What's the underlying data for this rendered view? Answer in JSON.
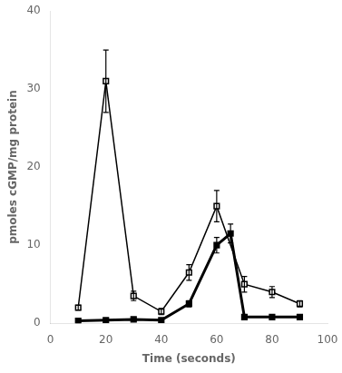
{
  "chart_data": {
    "type": "line",
    "xlabel": "Time (seconds)",
    "ylabel": "pmoles cGMP/mg protein",
    "series": [
      {
        "color": "#000000",
        "marker": "open_square",
        "x": [
          10,
          20,
          30,
          40,
          50,
          60,
          70,
          80,
          90
        ],
        "values": [
          2.0,
          31.0,
          3.5,
          1.5,
          6.5,
          15.0,
          5.0,
          4.0,
          2.5
        ],
        "yerr": [
          0.3,
          4.0,
          0.6,
          0.4,
          1.0,
          2.0,
          1.0,
          0.7,
          0.4
        ]
      },
      {
        "color": "#000000",
        "marker": "square",
        "x": [
          10,
          20,
          30,
          40,
          50,
          60,
          65,
          70,
          80,
          90
        ],
        "values": [
          0.3,
          0.4,
          0.5,
          0.4,
          2.5,
          10.0,
          11.5,
          0.8,
          0.8,
          0.8
        ],
        "yerr": [
          0.1,
          0.1,
          0.2,
          0.1,
          0.4,
          1.0,
          1.2,
          0.1,
          0.1,
          0.1
        ]
      }
    ],
    "xlim": [
      0,
      100
    ],
    "ylim": [
      0,
      40
    ],
    "xticks": [
      0,
      20,
      40,
      60,
      80,
      100
    ],
    "yticks": [
      0,
      10,
      20,
      30,
      40
    ],
    "grid": false
  }
}
